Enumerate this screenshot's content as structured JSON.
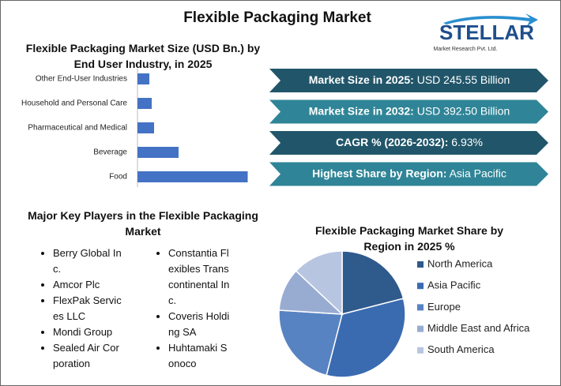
{
  "title": "Flexible Packaging Market",
  "logo": {
    "name": "STELLAR",
    "tagline": "Market Research Pvt. Ltd."
  },
  "chart_data": [
    {
      "type": "hbar",
      "title": "Flexible Packaging Market Size (USD Bn.) by End User Industry, in 2025",
      "categories": [
        "Other End-User Industries",
        "Household and Personal Care",
        "Pharmaceutical and Medical",
        "Beverage",
        "Food"
      ],
      "values": [
        15,
        18,
        21,
        52,
        139.5
      ],
      "color": "#4472c4",
      "xlim": [
        0,
        150
      ]
    },
    {
      "type": "pie",
      "title": "Flexible Packaging Market Share by Region in 2025 %",
      "categories": [
        "North America",
        "Asia Pacific",
        "Europe",
        "Middle East and Africa",
        "South America"
      ],
      "values": [
        21,
        33,
        22,
        11,
        13
      ],
      "colors": [
        "#2f5a8c",
        "#3a6bb0",
        "#5883c2",
        "#98acd2",
        "#b8c5e1"
      ]
    }
  ],
  "info_boxes": [
    {
      "label": "Market Size in 2025:",
      "value": "USD 245.55 Billion"
    },
    {
      "label": "Market Size in 2032:",
      "value": "USD 392.50 Billion"
    },
    {
      "label": "CAGR % (2026-2032):",
      "value": "6.93%"
    },
    {
      "label": "Highest Share by Region:",
      "value": "Asia Pacific"
    }
  ],
  "key_players": {
    "title": "Major Key Players in the Flexible Packaging Market",
    "columns": [
      [
        "Berry Global Inc.",
        "Amcor Plc",
        "FlexPak Services LLC",
        "Mondi Group",
        "Sealed Air Corporation"
      ],
      [
        "Constantia Flexibles Transcontinental Inc.",
        "Coveris Holding SA",
        "Huhtamaki Sonoco"
      ]
    ]
  }
}
